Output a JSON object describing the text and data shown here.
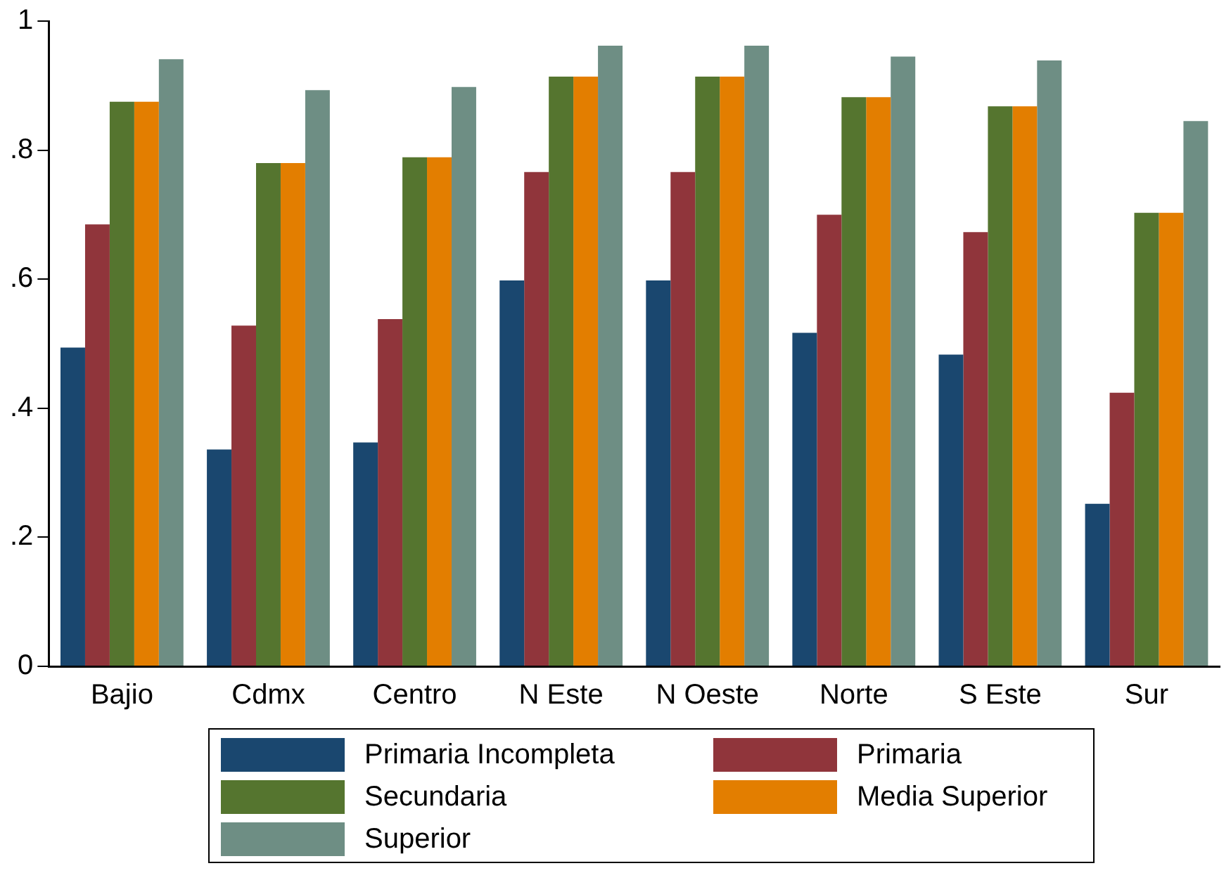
{
  "chart_data": {
    "type": "bar",
    "categories": [
      "Bajio",
      "Cdmx",
      "Centro",
      "N Este",
      "N Oeste",
      "Norte",
      "S Este",
      "Sur"
    ],
    "series": [
      {
        "name": "Primaria Incompleta",
        "color": "#1a476f",
        "values": [
          0.494,
          0.336,
          0.347,
          0.598,
          0.598,
          0.517,
          0.483,
          0.252
        ]
      },
      {
        "name": "Primaria",
        "color": "#90353b",
        "values": [
          0.685,
          0.528,
          0.538,
          0.766,
          0.766,
          0.7,
          0.673,
          0.424
        ]
      },
      {
        "name": "Secundaria",
        "color": "#55752f",
        "values": [
          0.875,
          0.78,
          0.789,
          0.914,
          0.914,
          0.882,
          0.868,
          0.703
        ]
      },
      {
        "name": "Media Superior",
        "color": "#e37e00",
        "values": [
          0.875,
          0.78,
          0.789,
          0.914,
          0.914,
          0.882,
          0.868,
          0.703
        ]
      },
      {
        "name": "Superior",
        "color": "#6e8e84",
        "values": [
          0.941,
          0.893,
          0.898,
          0.962,
          0.962,
          0.945,
          0.939,
          0.845
        ]
      }
    ],
    "ylim": [
      0,
      1
    ],
    "yticks": [
      0,
      {
        "value": 0.2,
        "label": ".2"
      },
      {
        "value": 0.4,
        "label": ".4"
      },
      {
        "value": 0.6,
        "label": ".6"
      },
      {
        "value": 0.8,
        "label": ".8"
      },
      1
    ],
    "grid": false,
    "legend": "bottom"
  }
}
